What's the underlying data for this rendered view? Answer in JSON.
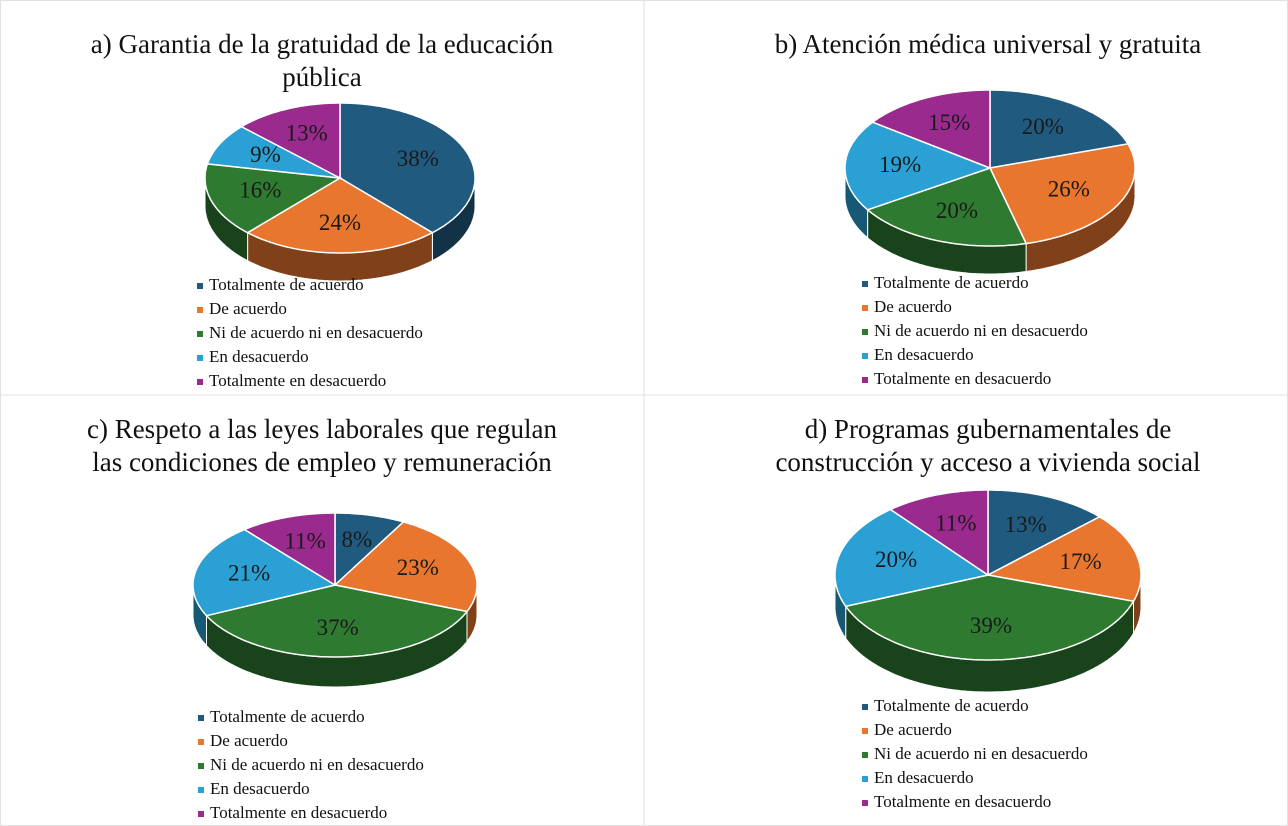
{
  "chart_data": [
    {
      "type": "pie",
      "title": [
        "a) Garantia de la gratuidad de la educación",
        "pública"
      ],
      "categories": [
        "Totalmente de acuerdo",
        "De acuerdo",
        "Ni de acuerdo ni en desacuerdo",
        "En desacuerdo",
        "Totalmente en desacuerdo"
      ],
      "values": [
        38,
        24,
        16,
        9,
        13
      ],
      "value_labels": [
        "38%",
        "24%",
        "16%",
        "9%",
        "13%"
      ],
      "colors": [
        "#215a7f",
        "#e8762f",
        "#2d7a30",
        "#2aa0d4",
        "#9a2a8e"
      ]
    },
    {
      "type": "pie",
      "title": [
        "b) Atención médica universal y gratuita"
      ],
      "categories": [
        "Totalmente de acuerdo",
        "De acuerdo",
        "Ni de acuerdo ni en desacuerdo",
        "En desacuerdo",
        "Totalmente en desacuerdo"
      ],
      "values": [
        20,
        26,
        20,
        19,
        15
      ],
      "value_labels": [
        "20%",
        "26%",
        "20%",
        "19%",
        "15%"
      ],
      "colors": [
        "#215a7f",
        "#e8762f",
        "#2d7a30",
        "#2aa0d4",
        "#9a2a8e"
      ]
    },
    {
      "type": "pie",
      "title": [
        "c) Respeto a las leyes laborales que regulan",
        "las condiciones de empleo y remuneración"
      ],
      "categories": [
        "Totalmente de acuerdo",
        "De acuerdo",
        "Ni de acuerdo ni en desacuerdo",
        "En desacuerdo",
        "Totalmente en desacuerdo"
      ],
      "values": [
        8,
        23,
        37,
        21,
        11
      ],
      "value_labels": [
        "8%",
        "23%",
        "37%",
        "21%",
        "11%"
      ],
      "colors": [
        "#215a7f",
        "#e8762f",
        "#2d7a30",
        "#2aa0d4",
        "#9a2a8e"
      ]
    },
    {
      "type": "pie",
      "title": [
        "d) Programas gubernamentales de",
        "construcción y acceso a vivienda social"
      ],
      "categories": [
        "Totalmente de acuerdo",
        "De acuerdo",
        "Ni de acuerdo ni en desacuerdo",
        "En desacuerdo",
        "Totalmente en desacuerdo"
      ],
      "values": [
        13,
        17,
        39,
        20,
        11
      ],
      "value_labels": [
        "13%",
        "17%",
        "39%",
        "20%",
        "11%"
      ],
      "colors": [
        "#215a7f",
        "#e8762f",
        "#2d7a30",
        "#2aa0d4",
        "#9a2a8e"
      ]
    }
  ]
}
